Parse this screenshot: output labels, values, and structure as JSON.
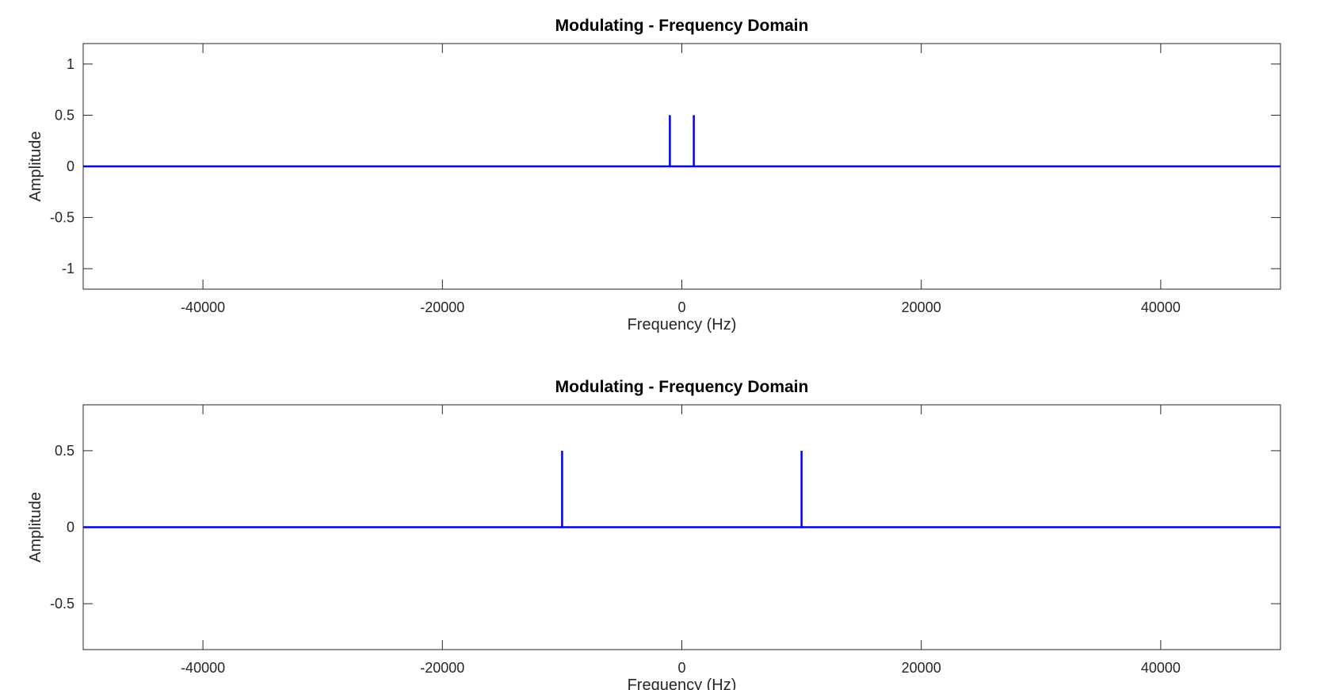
{
  "chart_data": [
    {
      "type": "line",
      "title": "Modulating - Frequency Domain",
      "xlabel": "Frequency (Hz)",
      "ylabel": "Amplitude",
      "xlim": [
        -50000,
        50000
      ],
      "ylim": [
        -1.2,
        1.2
      ],
      "xticks": [
        -40000,
        -20000,
        0,
        20000,
        40000
      ],
      "yticks": [
        -1,
        -0.5,
        0,
        0.5,
        1
      ],
      "ytick_labels": [
        "-1",
        "-0.5",
        "0",
        "0.5",
        "1"
      ],
      "grid": false,
      "series": [
        {
          "color": "#0000ee",
          "x": [
            -50000,
            -1000,
            -1000,
            -1000,
            1000,
            1000,
            1000,
            50000
          ],
          "y": [
            0,
            0,
            0.5,
            0,
            0,
            0.5,
            0,
            0
          ]
        }
      ]
    },
    {
      "type": "line",
      "title": "Modulating - Frequency Domain",
      "xlabel": "Frequency (Hz)",
      "ylabel": "Amplitude",
      "xlim": [
        -50000,
        50000
      ],
      "ylim": [
        -0.8,
        0.8
      ],
      "xticks": [
        -40000,
        -20000,
        0,
        20000,
        40000
      ],
      "yticks": [
        -0.5,
        0,
        0.5
      ],
      "ytick_labels": [
        "-0.5",
        "0",
        "0.5"
      ],
      "grid": false,
      "series": [
        {
          "color": "#0000ee",
          "x": [
            -50000,
            -10000,
            -10000,
            -10000,
            10000,
            10000,
            10000,
            50000
          ],
          "y": [
            0,
            0,
            0.5,
            0,
            0,
            0.5,
            0,
            0
          ]
        }
      ]
    }
  ]
}
